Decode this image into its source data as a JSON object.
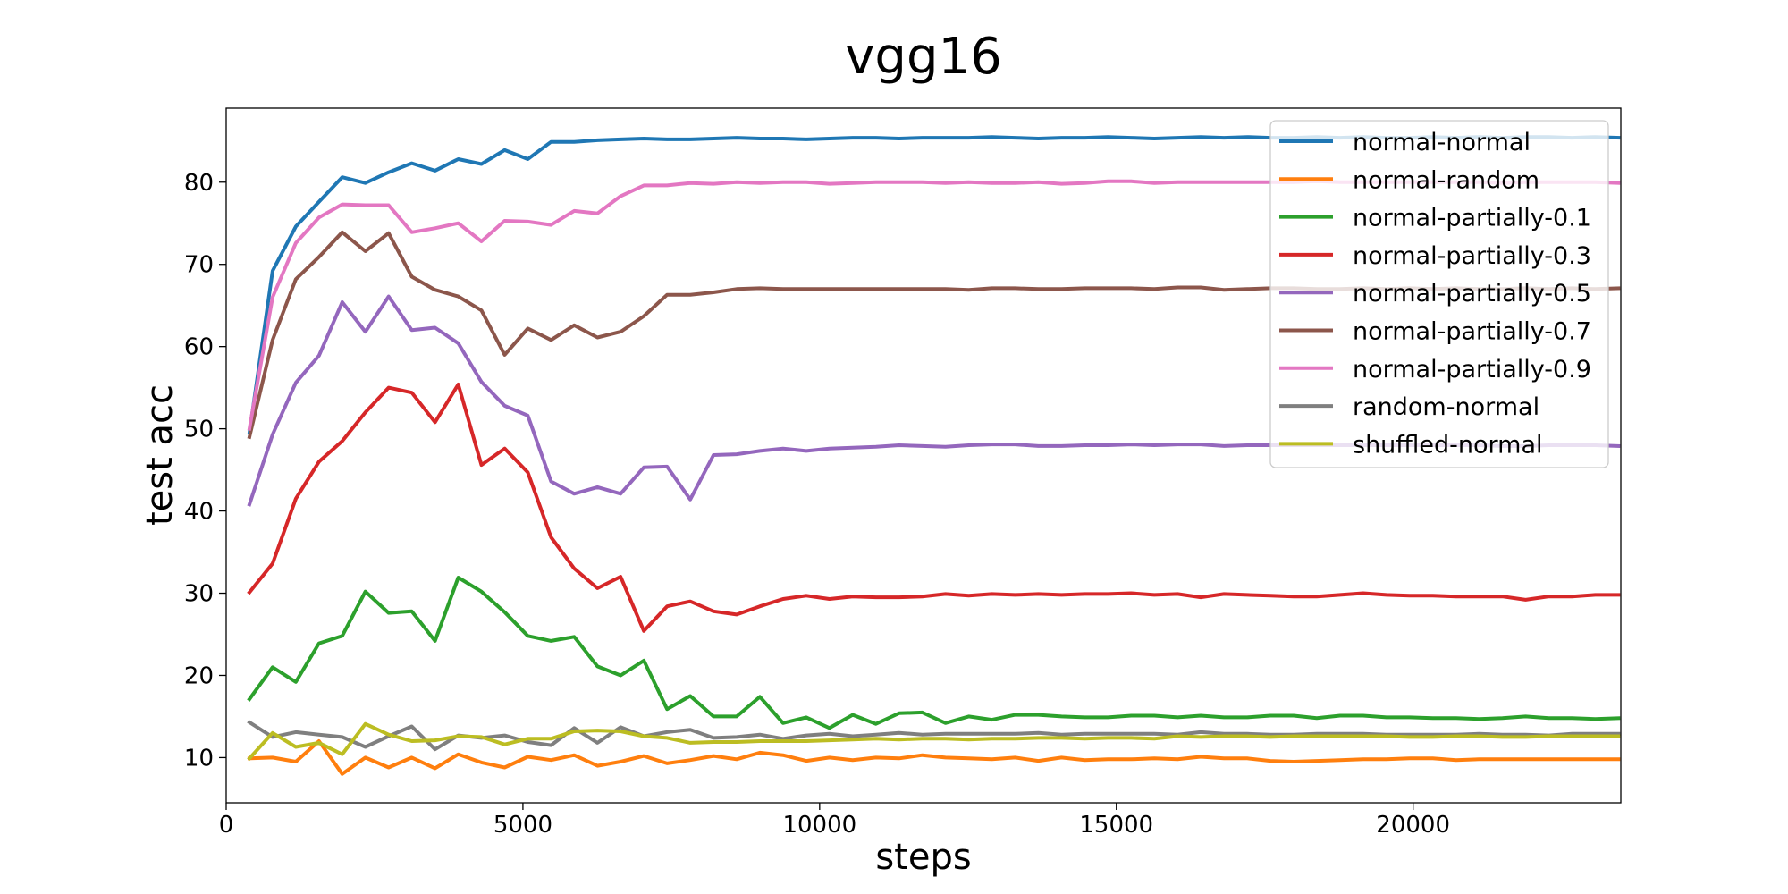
{
  "chart_data": {
    "type": "line",
    "title": "vgg16",
    "xlabel": "steps",
    "ylabel": "test acc",
    "xlim": [
      0,
      23500
    ],
    "ylim": [
      4.5,
      89
    ],
    "xticks": [
      0,
      5000,
      10000,
      15000,
      20000
    ],
    "xtick_labels": [
      "0",
      "5000",
      "10000",
      "15000",
      "20000"
    ],
    "yticks": [
      10,
      20,
      30,
      40,
      50,
      60,
      70,
      80
    ],
    "ytick_labels": [
      "10",
      "20",
      "30",
      "40",
      "50",
      "60",
      "70",
      "80"
    ],
    "grid": false,
    "legend_position": "top-right",
    "x": [
      391,
      782,
      1173,
      1564,
      1955,
      2346,
      2737,
      3128,
      3519,
      3910,
      4301,
      4692,
      5083,
      5474,
      5865,
      6256,
      6647,
      7038,
      7429,
      7820,
      8211,
      8602,
      8993,
      9384,
      9775,
      10166,
      10557,
      10948,
      11339,
      11730,
      12121,
      12512,
      12903,
      13294,
      13685,
      14076,
      14467,
      14858,
      15249,
      15640,
      16031,
      16422,
      16813,
      17204,
      17595,
      17986,
      18377,
      18768,
      19159,
      19550,
      19941,
      20332,
      20723,
      21114,
      21505,
      21896,
      22287,
      22678,
      23069,
      23460
    ],
    "series": [
      {
        "name": "normal-normal",
        "color": "#1f77b4",
        "values": [
          49.5,
          69.2,
          74.6,
          77.6,
          80.6,
          79.9,
          81.2,
          82.3,
          81.4,
          82.8,
          82.2,
          83.9,
          82.8,
          84.9,
          84.9,
          85.1,
          85.2,
          85.3,
          85.2,
          85.2,
          85.3,
          85.4,
          85.3,
          85.3,
          85.2,
          85.3,
          85.4,
          85.4,
          85.3,
          85.4,
          85.4,
          85.4,
          85.5,
          85.4,
          85.3,
          85.4,
          85.4,
          85.5,
          85.4,
          85.3,
          85.4,
          85.5,
          85.4,
          85.5,
          85.4,
          85.4,
          85.5,
          85.4,
          85.5,
          85.4,
          85.4,
          85.5,
          85.4,
          85.5,
          85.4,
          85.5,
          85.5,
          85.4,
          85.5,
          85.4
        ]
      },
      {
        "name": "normal-random",
        "color": "#ff7f0e",
        "values": [
          9.9,
          10.0,
          9.5,
          12.0,
          8.0,
          10.0,
          8.8,
          10.0,
          8.7,
          10.4,
          9.4,
          8.8,
          10.1,
          9.7,
          10.3,
          9.0,
          9.5,
          10.2,
          9.3,
          9.7,
          10.2,
          9.8,
          10.6,
          10.3,
          9.6,
          10.0,
          9.7,
          10.0,
          9.9,
          10.3,
          10.0,
          9.9,
          9.8,
          10.0,
          9.6,
          10.0,
          9.7,
          9.8,
          9.8,
          9.9,
          9.8,
          10.1,
          9.9,
          9.9,
          9.6,
          9.5,
          9.6,
          9.7,
          9.8,
          9.8,
          9.9,
          9.9,
          9.7,
          9.8,
          9.8,
          9.8,
          9.8,
          9.8,
          9.8,
          9.8
        ]
      },
      {
        "name": "normal-partially-0.1",
        "color": "#2ca02c",
        "values": [
          17.1,
          21.0,
          19.2,
          23.9,
          24.8,
          30.2,
          27.6,
          27.8,
          24.2,
          31.9,
          30.2,
          27.7,
          24.8,
          24.2,
          24.7,
          21.1,
          20.0,
          21.8,
          15.9,
          17.5,
          15.0,
          15.0,
          17.4,
          14.2,
          14.9,
          13.6,
          15.2,
          14.1,
          15.4,
          15.5,
          14.2,
          15.0,
          14.6,
          15.2,
          15.2,
          15.0,
          14.9,
          14.9,
          15.1,
          15.1,
          14.9,
          15.1,
          14.9,
          14.9,
          15.1,
          15.1,
          14.8,
          15.1,
          15.1,
          14.9,
          14.9,
          14.8,
          14.8,
          14.7,
          14.8,
          15.0,
          14.8,
          14.8,
          14.7,
          14.8
        ]
      },
      {
        "name": "normal-partially-0.3",
        "color": "#d62728",
        "values": [
          30.1,
          33.6,
          41.5,
          46.0,
          48.5,
          52.0,
          55.0,
          54.4,
          50.8,
          55.4,
          45.6,
          47.6,
          44.7,
          36.8,
          33.0,
          30.6,
          32.0,
          25.4,
          28.4,
          29.0,
          27.8,
          27.4,
          28.4,
          29.3,
          29.7,
          29.3,
          29.6,
          29.5,
          29.5,
          29.6,
          29.9,
          29.7,
          29.9,
          29.8,
          29.9,
          29.8,
          29.9,
          29.9,
          30.0,
          29.8,
          29.9,
          29.5,
          29.9,
          29.8,
          29.7,
          29.6,
          29.6,
          29.8,
          30.0,
          29.8,
          29.7,
          29.7,
          29.6,
          29.6,
          29.6,
          29.2,
          29.6,
          29.6,
          29.8,
          29.8
        ]
      },
      {
        "name": "normal-partially-0.5",
        "color": "#9467bd",
        "values": [
          40.8,
          49.3,
          55.6,
          58.9,
          65.4,
          61.8,
          66.1,
          62.0,
          62.3,
          60.4,
          55.7,
          52.8,
          51.6,
          43.6,
          42.1,
          42.9,
          42.1,
          45.3,
          45.4,
          41.4,
          46.8,
          46.9,
          47.3,
          47.6,
          47.3,
          47.6,
          47.7,
          47.8,
          48.0,
          47.9,
          47.8,
          48.0,
          48.1,
          48.1,
          47.9,
          47.9,
          48.0,
          48.0,
          48.1,
          48.0,
          48.1,
          48.1,
          47.9,
          48.0,
          48.0,
          48.0,
          48.0,
          48.0,
          48.0,
          48.0,
          48.0,
          48.0,
          48.0,
          48.0,
          47.9,
          47.9,
          48.0,
          48.0,
          48.0,
          47.9
        ]
      },
      {
        "name": "normal-partially-0.7",
        "color": "#8c564b",
        "values": [
          49.0,
          60.8,
          68.2,
          70.9,
          73.9,
          71.6,
          73.8,
          68.5,
          66.9,
          66.1,
          64.4,
          59.0,
          62.2,
          60.8,
          62.6,
          61.1,
          61.8,
          63.7,
          66.3,
          66.3,
          66.6,
          67.0,
          67.1,
          67.0,
          67.0,
          67.0,
          67.0,
          67.0,
          67.0,
          67.0,
          67.0,
          66.9,
          67.1,
          67.1,
          67.0,
          67.0,
          67.1,
          67.1,
          67.1,
          67.0,
          67.2,
          67.2,
          66.9,
          67.0,
          67.1,
          67.1,
          67.0,
          67.0,
          67.1,
          67.0,
          67.1,
          67.0,
          67.1,
          67.0,
          67.0,
          67.1,
          67.0,
          67.1,
          67.0,
          67.1
        ]
      },
      {
        "name": "normal-partially-0.9",
        "color": "#e377c2",
        "values": [
          50.0,
          66.0,
          72.6,
          75.7,
          77.3,
          77.2,
          77.2,
          73.9,
          74.4,
          75.0,
          72.8,
          75.3,
          75.2,
          74.8,
          76.5,
          76.2,
          78.3,
          79.6,
          79.6,
          79.9,
          79.8,
          80.0,
          79.9,
          80.0,
          80.0,
          79.8,
          79.9,
          80.0,
          80.0,
          80.0,
          79.9,
          80.0,
          79.9,
          79.9,
          80.0,
          79.8,
          79.9,
          80.1,
          80.1,
          79.9,
          80.0,
          80.0,
          80.0,
          80.0,
          80.0,
          80.0,
          80.1,
          80.0,
          80.0,
          80.0,
          80.0,
          80.0,
          80.0,
          80.0,
          79.9,
          80.0,
          80.0,
          80.0,
          80.0,
          79.9
        ]
      },
      {
        "name": "random-normal",
        "color": "#7f7f7f",
        "values": [
          14.3,
          12.5,
          13.1,
          12.8,
          12.5,
          11.3,
          12.6,
          13.8,
          11.0,
          12.7,
          12.4,
          12.7,
          11.9,
          11.5,
          13.6,
          11.8,
          13.7,
          12.6,
          13.1,
          13.4,
          12.4,
          12.5,
          12.8,
          12.3,
          12.7,
          12.9,
          12.6,
          12.8,
          13.0,
          12.8,
          12.9,
          12.9,
          12.9,
          12.9,
          13.0,
          12.8,
          12.9,
          12.9,
          12.9,
          12.9,
          12.8,
          13.1,
          12.9,
          12.9,
          12.8,
          12.8,
          12.9,
          12.9,
          12.9,
          12.8,
          12.8,
          12.8,
          12.8,
          12.9,
          12.8,
          12.8,
          12.7,
          12.9,
          12.9,
          12.9
        ]
      },
      {
        "name": "shuffled-normal",
        "color": "#bcbd22",
        "values": [
          9.9,
          13.0,
          11.3,
          11.8,
          10.4,
          14.1,
          12.8,
          12.0,
          12.1,
          12.6,
          12.5,
          11.6,
          12.3,
          12.3,
          13.2,
          13.3,
          13.2,
          12.6,
          12.4,
          11.8,
          11.9,
          11.9,
          12.0,
          12.0,
          12.0,
          12.1,
          12.2,
          12.3,
          12.2,
          12.3,
          12.3,
          12.2,
          12.3,
          12.3,
          12.4,
          12.4,
          12.3,
          12.4,
          12.4,
          12.3,
          12.6,
          12.5,
          12.6,
          12.6,
          12.5,
          12.6,
          12.6,
          12.6,
          12.6,
          12.6,
          12.5,
          12.5,
          12.6,
          12.6,
          12.5,
          12.5,
          12.6,
          12.6,
          12.6,
          12.6
        ]
      }
    ]
  }
}
